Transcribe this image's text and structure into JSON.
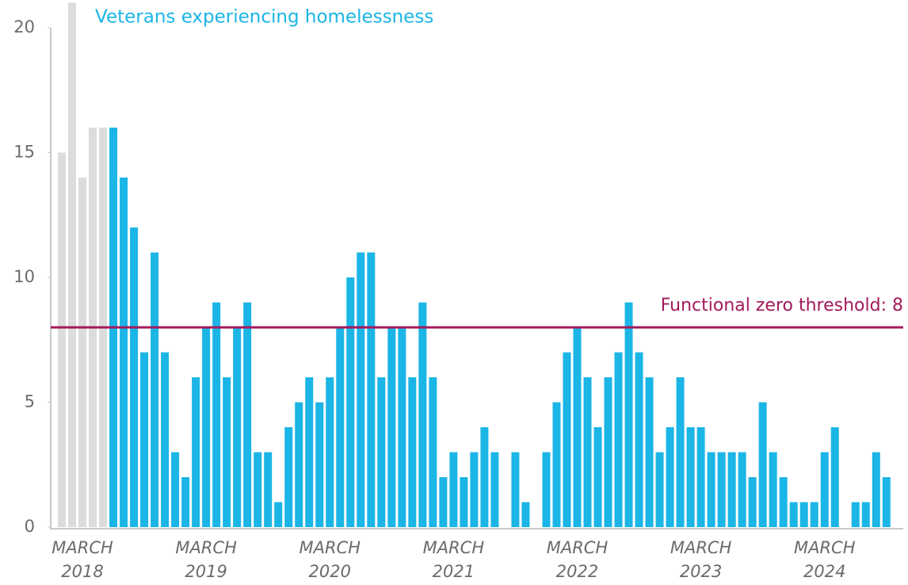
{
  "chart_data": {
    "type": "bar",
    "title": "Veterans experiencing homelessness",
    "title_color": "#1bb5e6",
    "categories": [
      null,
      null,
      "MARCH 2018",
      null,
      null,
      null,
      null,
      null,
      null,
      null,
      null,
      null,
      null,
      null,
      "MARCH 2019",
      null,
      null,
      null,
      null,
      null,
      null,
      null,
      null,
      null,
      null,
      null,
      "MARCH 2020",
      null,
      null,
      null,
      null,
      null,
      null,
      null,
      null,
      null,
      null,
      null,
      "MARCH 2021",
      null,
      null,
      null,
      null,
      null,
      null,
      null,
      null,
      null,
      null,
      null,
      "MARCH 2022",
      null,
      null,
      null,
      null,
      null,
      null,
      null,
      null,
      null,
      null,
      null,
      "MARCH 2023",
      null,
      null,
      null,
      null,
      null,
      null,
      null,
      null,
      null,
      null,
      null,
      "MARCH 2024",
      null,
      null,
      null,
      null,
      null,
      null
    ],
    "values": [
      15,
      21,
      14,
      16,
      16,
      16,
      14,
      12,
      7,
      11,
      7,
      3,
      2,
      6,
      8,
      9,
      6,
      8,
      9,
      3,
      3,
      1,
      4,
      5,
      6,
      5,
      6,
      8,
      10,
      11,
      11,
      6,
      8,
      8,
      6,
      9,
      6,
      2,
      3,
      2,
      3,
      4,
      3,
      0,
      3,
      1,
      0,
      3,
      5,
      7,
      8,
      6,
      4,
      6,
      7,
      9,
      7,
      6,
      3,
      4,
      6,
      4,
      4,
      3,
      3,
      3,
      3,
      2,
      5,
      3,
      2,
      1,
      1,
      1,
      3,
      4,
      0,
      1,
      1,
      3,
      2
    ],
    "colors": [
      "#dcdcdc",
      "#dcdcdc",
      "#dcdcdc",
      "#dcdcdc",
      "#dcdcdc",
      "#1bb5e6",
      "#1bb5e6",
      "#1bb5e6",
      "#1bb5e6",
      "#1bb5e6",
      "#1bb5e6",
      "#1bb5e6",
      "#1bb5e6",
      "#1bb5e6",
      "#1bb5e6",
      "#1bb5e6",
      "#1bb5e6",
      "#1bb5e6",
      "#1bb5e6",
      "#1bb5e6",
      "#1bb5e6",
      "#1bb5e6",
      "#1bb5e6",
      "#1bb5e6",
      "#1bb5e6",
      "#1bb5e6",
      "#1bb5e6",
      "#1bb5e6",
      "#1bb5e6",
      "#1bb5e6",
      "#1bb5e6",
      "#1bb5e6",
      "#1bb5e6",
      "#1bb5e6",
      "#1bb5e6",
      "#1bb5e6",
      "#1bb5e6",
      "#1bb5e6",
      "#1bb5e6",
      "#1bb5e6",
      "#1bb5e6",
      "#1bb5e6",
      "#1bb5e6",
      "#1bb5e6",
      "#1bb5e6",
      "#1bb5e6",
      "#1bb5e6",
      "#1bb5e6",
      "#1bb5e6",
      "#1bb5e6",
      "#1bb5e6",
      "#1bb5e6",
      "#1bb5e6",
      "#1bb5e6",
      "#1bb5e6",
      "#1bb5e6",
      "#1bb5e6",
      "#1bb5e6",
      "#1bb5e6",
      "#1bb5e6",
      "#1bb5e6",
      "#1bb5e6",
      "#1bb5e6",
      "#1bb5e6",
      "#1bb5e6",
      "#1bb5e6",
      "#1bb5e6",
      "#1bb5e6",
      "#1bb5e6",
      "#1bb5e6",
      "#1bb5e6",
      "#1bb5e6",
      "#1bb5e6",
      "#1bb5e6",
      "#1bb5e6",
      "#1bb5e6",
      "#1bb5e6",
      "#1bb5e6",
      "#1bb5e6",
      "#1bb5e6",
      "#1bb5e6"
    ],
    "ylim": [
      0,
      20
    ],
    "yticks": [
      0,
      5,
      10,
      15,
      20
    ],
    "grid": false,
    "threshold": {
      "value": 8,
      "label": "Functional zero threshold: 8",
      "color": "#a3195b"
    }
  }
}
